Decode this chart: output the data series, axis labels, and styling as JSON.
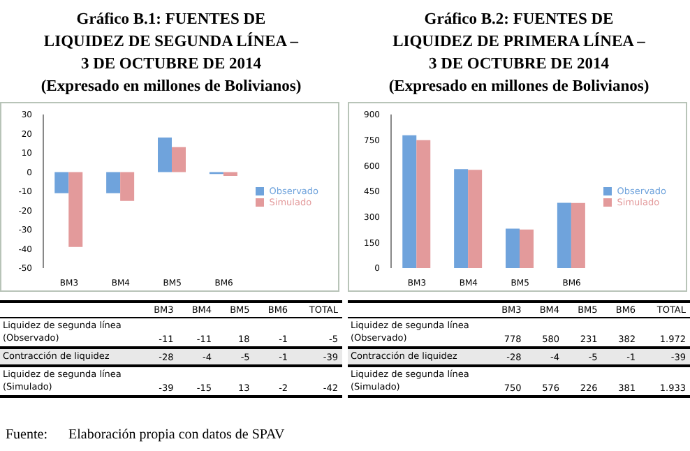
{
  "chart_data": [
    {
      "type": "bar",
      "title": "Gráfico B.1: FUENTES DE LIQUIDEZ DE SEGUNDA LÍNEA – 3 DE OCTUBRE DE 2014",
      "subtitle": "(Expresado en millones de Bolivianos)",
      "categories": [
        "BM3",
        "BM4",
        "BM5",
        "BM6"
      ],
      "series": [
        {
          "name": "Observado",
          "color": "#6fa3dc",
          "values": [
            -11,
            -11,
            18,
            -1
          ]
        },
        {
          "name": "Simulado",
          "color": "#e39a9b",
          "values": [
            -39,
            -15,
            13,
            -2
          ]
        }
      ],
      "ylim": [
        -50,
        30
      ],
      "yticks": [
        -50,
        -40,
        -30,
        -20,
        -10,
        0,
        10,
        20,
        30
      ],
      "grid": false,
      "legend": "right",
      "annotations": [
        "Liquidez de segunda línea (Observado)",
        "Contracción de liquidez",
        "Liquidez de segunda línea (Simulado)",
        "TOTAL",
        "-28",
        "-4",
        "-5",
        "-1",
        "-5",
        "-39",
        "-42",
        "-11",
        "-11",
        "18",
        "-1",
        "-39",
        "-15",
        "13",
        "-2",
        "Fuente:      Elaboración propia con datos de SPAV"
      ]
    },
    {
      "type": "bar",
      "title": "Gráfico B.2: FUENTES DE LIQUIDEZ DE PRIMERA LÍNEA – 3 DE OCTUBRE DE 2014",
      "subtitle": "(Expresado en millones de Bolivianos)",
      "categories": [
        "BM3",
        "BM4",
        "BM5",
        "BM6"
      ],
      "series": [
        {
          "name": "Observado",
          "color": "#6fa3dc",
          "values": [
            778,
            580,
            231,
            382
          ]
        },
        {
          "name": "Simulado",
          "color": "#e39a9b",
          "values": [
            750,
            576,
            226,
            381
          ]
        }
      ],
      "ylim": [
        0,
        900
      ],
      "yticks": [
        0,
        150,
        300,
        450,
        600,
        750,
        900
      ],
      "grid": false,
      "legend": "right",
      "annotations": [
        "Liquidez de segunda línea (Observado)",
        "Contracción de liquidez",
        "Liquidez de segunda línea (Simulado)",
        "TOTAL",
        "-28",
        "-4",
        "-5",
        "-1",
        "1.972",
        "-39",
        "1.933",
        "778",
        "580",
        "231",
        "382",
        "750",
        "576",
        "226",
        "381"
      ]
    }
  ]
}
